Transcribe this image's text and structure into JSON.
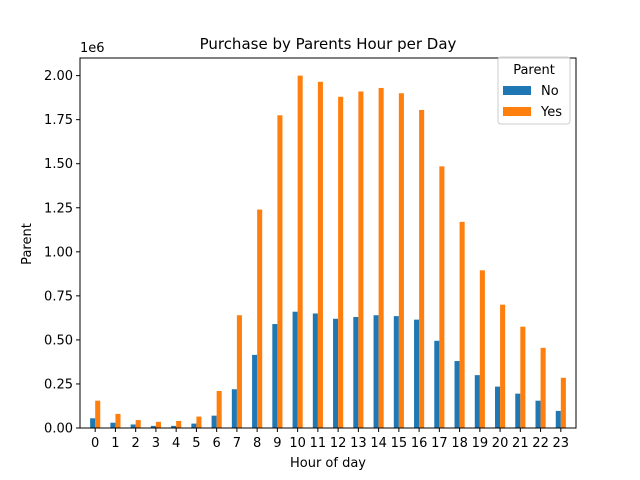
{
  "chart_data": {
    "type": "bar",
    "title": "Purchase by Parents Hour per Day",
    "xlabel": "Hour of day",
    "ylabel": "Parent",
    "offset_text": "1e6",
    "categories": [
      "0",
      "1",
      "2",
      "3",
      "4",
      "5",
      "6",
      "7",
      "8",
      "9",
      "10",
      "11",
      "12",
      "13",
      "14",
      "15",
      "16",
      "17",
      "18",
      "19",
      "20",
      "21",
      "22",
      "23"
    ],
    "ylim": [
      0,
      2100000
    ],
    "yticks": [
      0,
      250000,
      500000,
      750000,
      1000000,
      1250000,
      1500000,
      1750000,
      2000000
    ],
    "ytick_labels": [
      "0.00",
      "0.25",
      "0.50",
      "0.75",
      "1.00",
      "1.25",
      "1.50",
      "1.75",
      "2.00"
    ],
    "legend": {
      "title": "Parent",
      "placement": "top-right"
    },
    "grid": false,
    "series": [
      {
        "name": "No",
        "color": "#1f77b4",
        "values": [
          55000,
          30000,
          20000,
          12000,
          12000,
          25000,
          70000,
          220000,
          415000,
          590000,
          660000,
          650000,
          620000,
          630000,
          640000,
          635000,
          615000,
          495000,
          380000,
          300000,
          235000,
          195000,
          155000,
          97000
        ]
      },
      {
        "name": "Yes",
        "color": "#ff7f0e",
        "values": [
          155000,
          80000,
          45000,
          35000,
          40000,
          65000,
          210000,
          640000,
          1240000,
          1775000,
          2000000,
          1965000,
          1880000,
          1910000,
          1930000,
          1900000,
          1805000,
          1485000,
          1170000,
          895000,
          700000,
          575000,
          455000,
          285000
        ]
      }
    ]
  }
}
